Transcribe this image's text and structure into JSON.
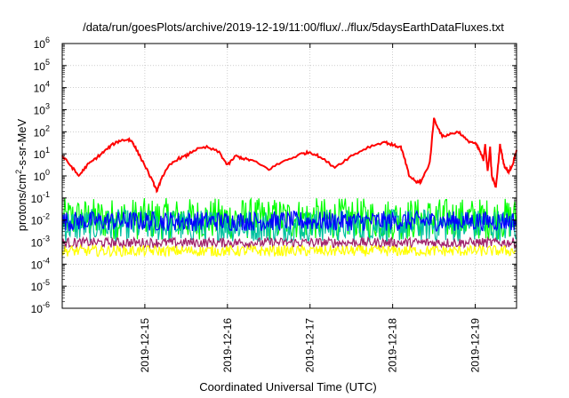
{
  "chart_data": {
    "type": "line",
    "title": "/data/run/goesPlots/archive/2019-12-19/11:00/flux/../flux/5daysEarthDataFluxes.txt",
    "xlabel": "Coordinated Universal Time (UTC)",
    "ylabel": {
      "base": "protons/cm",
      "sup": "2",
      "rest": "-s-sr-MeV"
    },
    "yscale": "log",
    "ylim": [
      1e-06,
      1000000.0
    ],
    "xlim_days": [
      14.0,
      19.5
    ],
    "grid": true,
    "legend": "none",
    "y_ticks": [
      {
        "value": -6,
        "base": "10",
        "exp": "-6"
      },
      {
        "value": -5,
        "base": "10",
        "exp": "-5"
      },
      {
        "value": -4,
        "base": "10",
        "exp": "-4"
      },
      {
        "value": -3,
        "base": "10",
        "exp": "-3"
      },
      {
        "value": -2,
        "base": "10",
        "exp": "-2"
      },
      {
        "value": -1,
        "base": "10",
        "exp": "-1"
      },
      {
        "value": 0,
        "base": "10",
        "exp": "0"
      },
      {
        "value": 1,
        "base": "10",
        "exp": "1"
      },
      {
        "value": 2,
        "base": "10",
        "exp": "2"
      },
      {
        "value": 3,
        "base": "10",
        "exp": "3"
      },
      {
        "value": 4,
        "base": "10",
        "exp": "4"
      },
      {
        "value": 5,
        "base": "10",
        "exp": "5"
      },
      {
        "value": 6,
        "base": "10",
        "exp": "6"
      }
    ],
    "x_ticks": [
      {
        "day": 15,
        "label": "2019-12-15"
      },
      {
        "day": 16,
        "label": "2019-12-16"
      },
      {
        "day": 17,
        "label": "2019-12-17"
      },
      {
        "day": 18,
        "label": "2019-12-18"
      },
      {
        "day": 19,
        "label": "2019-12-19"
      }
    ],
    "series": [
      {
        "color": "#ff0000",
        "x": [
          14.0,
          14.1,
          14.2,
          14.3,
          14.4,
          14.5,
          14.6,
          14.7,
          14.8,
          14.85,
          14.9,
          15.0,
          15.1,
          15.15,
          15.2,
          15.3,
          15.4,
          15.5,
          15.6,
          15.75,
          15.9,
          16.0,
          16.1,
          16.2,
          16.3,
          16.5,
          16.7,
          16.9,
          17.0,
          17.1,
          17.3,
          17.5,
          17.7,
          17.9,
          18.0,
          18.1,
          18.15,
          18.2,
          18.3,
          18.35,
          18.45,
          18.5,
          18.6,
          18.7,
          18.8,
          18.9,
          19.0,
          19.05,
          19.1,
          19.12,
          19.15,
          19.18,
          19.2,
          19.25,
          19.3,
          19.35,
          19.4,
          19.45,
          19.5
        ],
        "y": [
          8,
          3,
          1,
          3,
          6,
          12,
          25,
          40,
          45,
          35,
          15,
          3,
          0.5,
          0.2,
          0.8,
          3,
          6,
          8,
          15,
          20,
          12,
          3,
          8,
          6,
          5,
          2,
          5,
          10,
          12,
          8,
          2.5,
          8,
          20,
          35,
          25,
          20,
          5,
          1,
          0.5,
          0.6,
          4,
          400,
          60,
          80,
          100,
          40,
          30,
          15,
          5,
          30,
          1.5,
          20,
          1,
          0.3,
          25,
          3,
          1.5,
          3,
          15
        ]
      },
      {
        "color": "#00ff00",
        "band": [
          -2.9,
          -1.0
        ]
      },
      {
        "color": "#00c0a0",
        "band": [
          -3.0,
          -1.5
        ]
      },
      {
        "color": "#0000ff",
        "band": [
          -2.5,
          -1.6
        ]
      },
      {
        "color": "#a0206a",
        "band": [
          -3.25,
          -2.8
        ]
      },
      {
        "color": "#ffff00",
        "band": [
          -3.65,
          -3.15
        ]
      }
    ]
  }
}
